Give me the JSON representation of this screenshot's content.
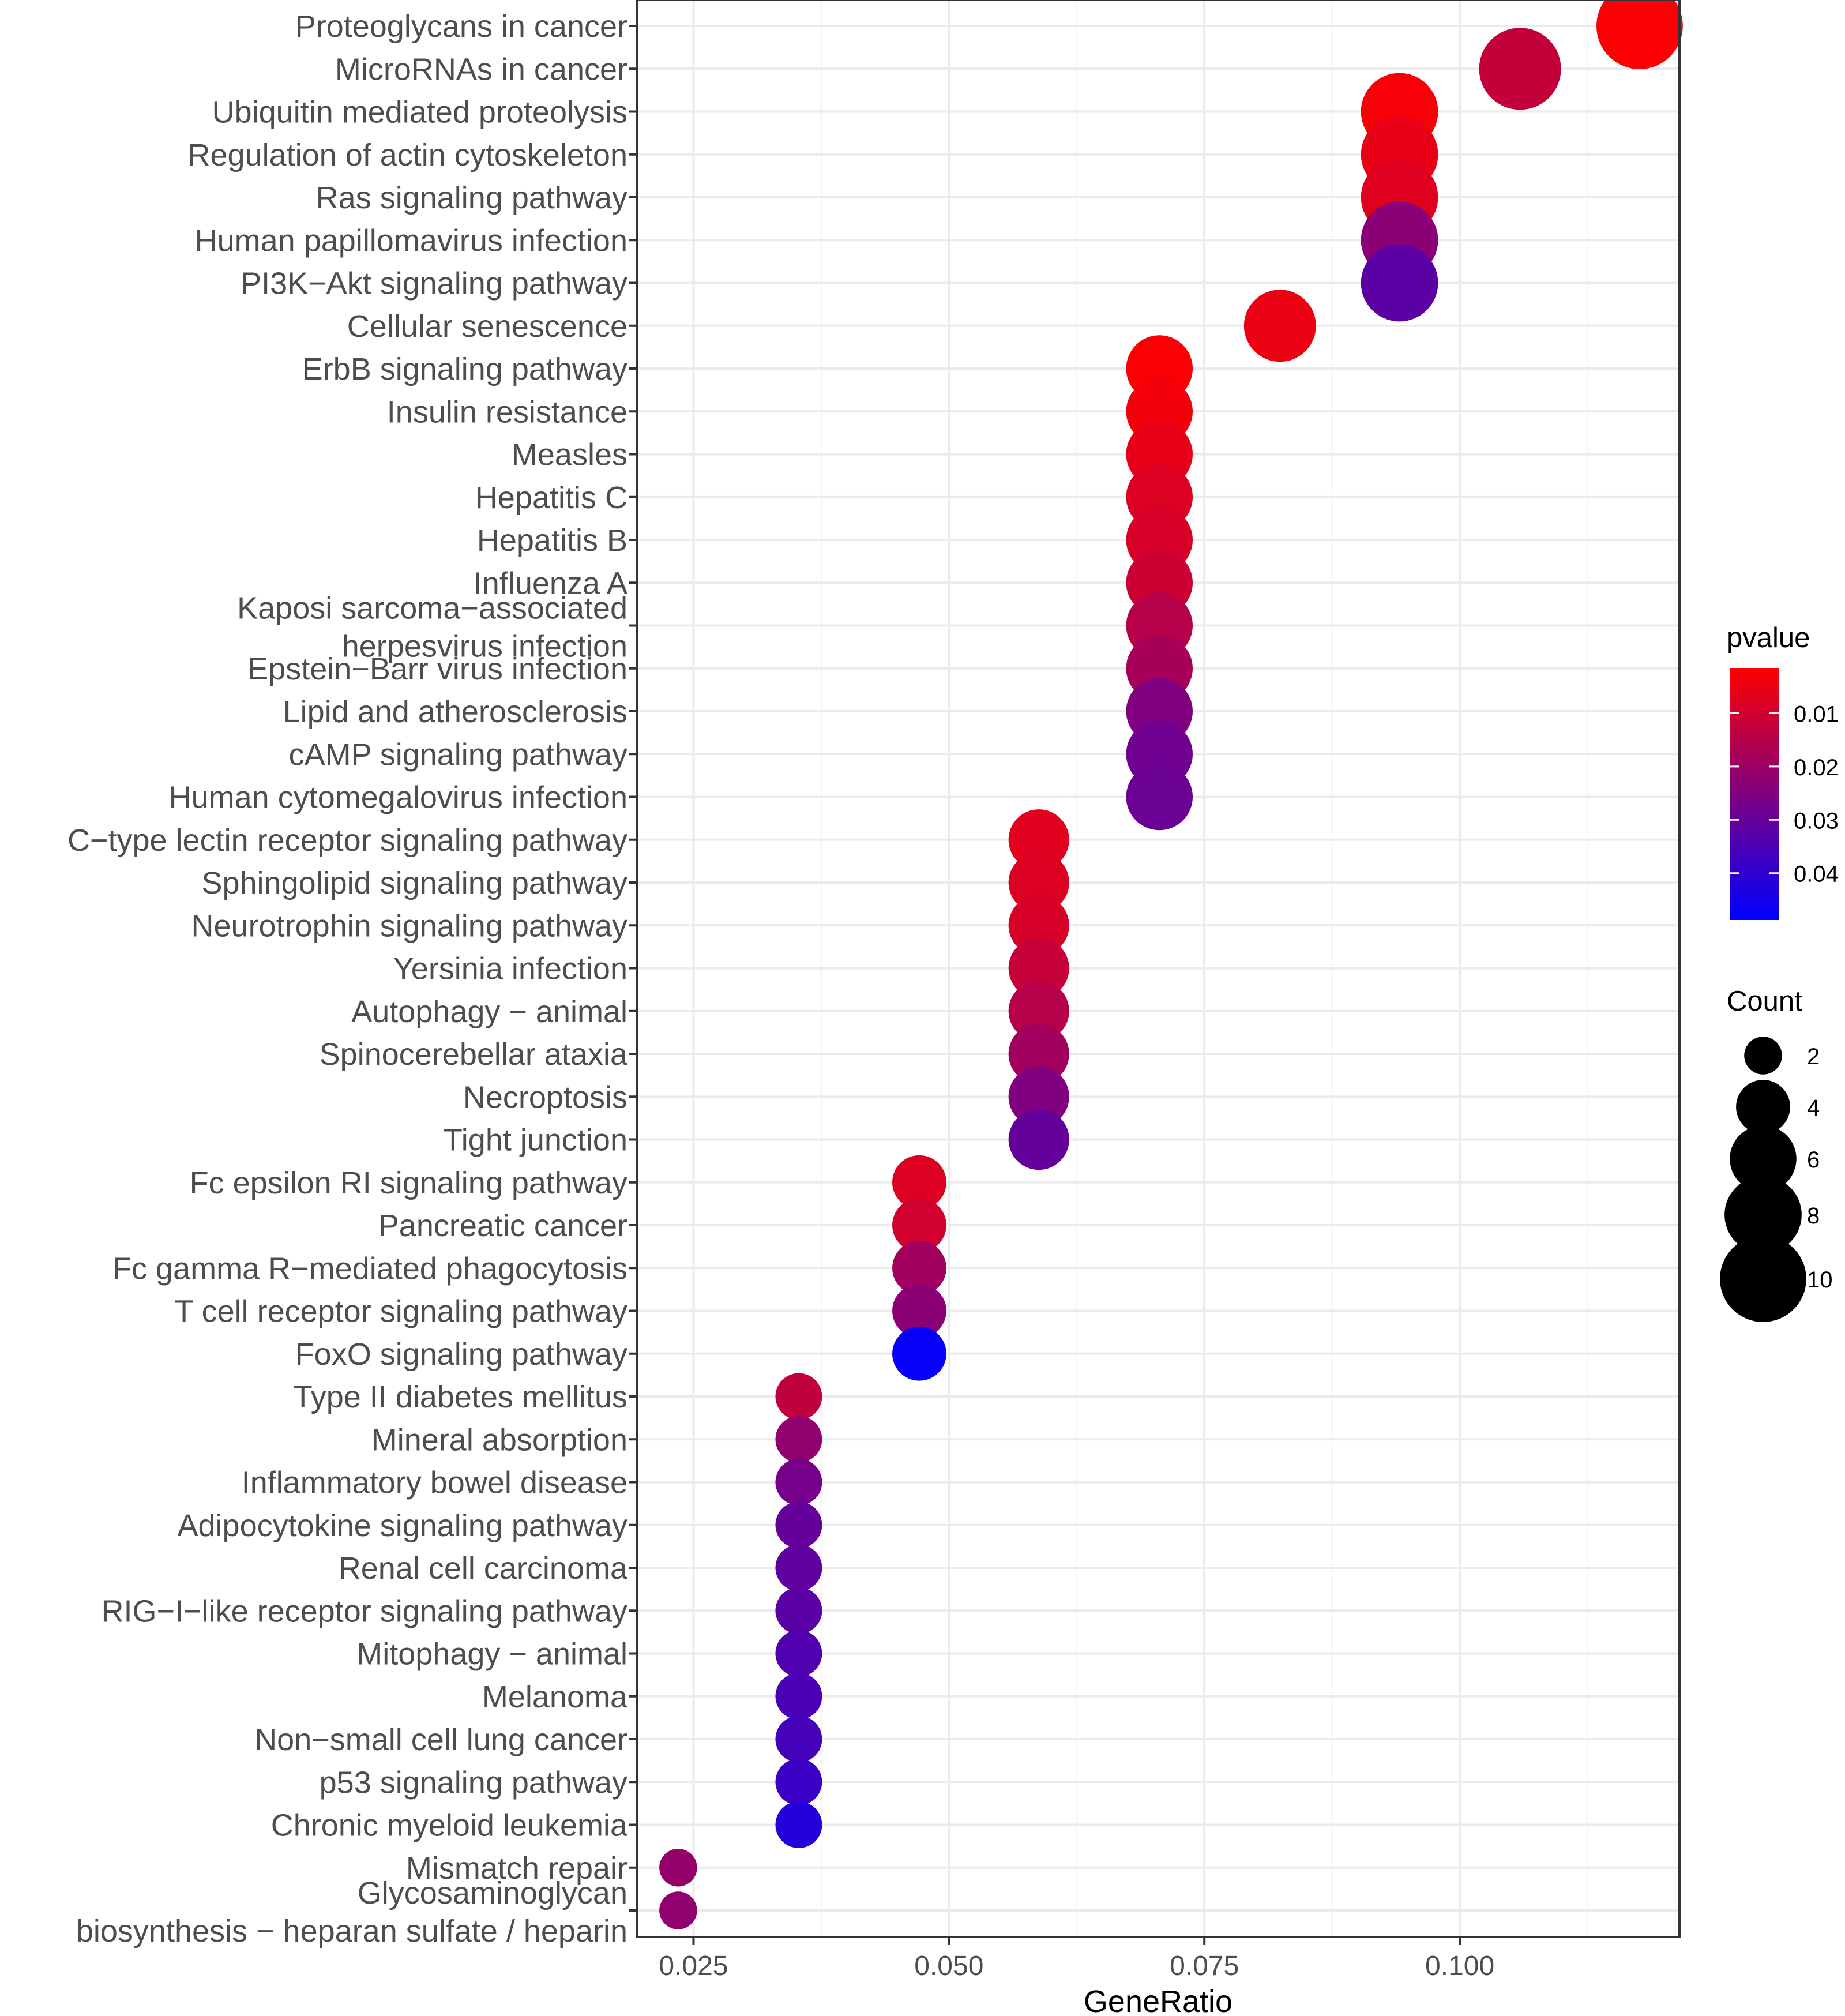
{
  "chart_data": {
    "type": "scatter",
    "title": "",
    "xlabel": "GeneRatio",
    "ylabel": "",
    "xlim": [
      0.0195,
      0.1215
    ],
    "xticks": [
      {
        "value": 0.025,
        "label": "0.025"
      },
      {
        "value": 0.05,
        "label": "0.050"
      },
      {
        "value": 0.075,
        "label": "0.075"
      },
      {
        "value": 0.1,
        "label": "0.100"
      }
    ],
    "points": [
      {
        "term": [
          "Proteoglycans in cancer"
        ],
        "generatio": 0.1176,
        "count": 10,
        "pvalue": 0.002
      },
      {
        "term": [
          "MicroRNAs in cancer"
        ],
        "generatio": 0.1059,
        "count": 9,
        "pvalue": 0.0125
      },
      {
        "term": [
          "Ubiquitin mediated proteolysis"
        ],
        "generatio": 0.0941,
        "count": 8,
        "pvalue": 0.003
      },
      {
        "term": [
          "Regulation of actin cytoskeleton"
        ],
        "generatio": 0.0941,
        "count": 8,
        "pvalue": 0.0055
      },
      {
        "term": [
          "Ras signaling pathway"
        ],
        "generatio": 0.0941,
        "count": 8,
        "pvalue": 0.0075
      },
      {
        "term": [
          "Human papillomavirus infection"
        ],
        "generatio": 0.0941,
        "count": 8,
        "pvalue": 0.023
      },
      {
        "term": [
          "PI3K−Akt signaling pathway"
        ],
        "generatio": 0.0941,
        "count": 8,
        "pvalue": 0.032
      },
      {
        "term": [
          "Cellular senescence"
        ],
        "generatio": 0.0824,
        "count": 7,
        "pvalue": 0.005
      },
      {
        "term": [
          "ErbB signaling pathway"
        ],
        "generatio": 0.0706,
        "count": 6,
        "pvalue": 0.0025
      },
      {
        "term": [
          "Insulin resistance"
        ],
        "generatio": 0.0706,
        "count": 6,
        "pvalue": 0.0035
      },
      {
        "term": [
          "Measles"
        ],
        "generatio": 0.0706,
        "count": 6,
        "pvalue": 0.006
      },
      {
        "term": [
          "Hepatitis C"
        ],
        "generatio": 0.0706,
        "count": 6,
        "pvalue": 0.008
      },
      {
        "term": [
          "Hepatitis B"
        ],
        "generatio": 0.0706,
        "count": 6,
        "pvalue": 0.009
      },
      {
        "term": [
          "Influenza A"
        ],
        "generatio": 0.0706,
        "count": 6,
        "pvalue": 0.011
      },
      {
        "term": [
          "Kaposi sarcoma−associated",
          "herpesvirus infection"
        ],
        "generatio": 0.0706,
        "count": 6,
        "pvalue": 0.015
      },
      {
        "term": [
          "Epstein−Barr virus infection"
        ],
        "generatio": 0.0706,
        "count": 6,
        "pvalue": 0.018
      },
      {
        "term": [
          "Lipid and atherosclerosis"
        ],
        "generatio": 0.0706,
        "count": 6,
        "pvalue": 0.025
      },
      {
        "term": [
          "cAMP signaling pathway"
        ],
        "generatio": 0.0706,
        "count": 6,
        "pvalue": 0.028
      },
      {
        "term": [
          "Human cytomegalovirus infection"
        ],
        "generatio": 0.0706,
        "count": 6,
        "pvalue": 0.029
      },
      {
        "term": [
          "C−type lectin receptor signaling pathway"
        ],
        "generatio": 0.0588,
        "count": 5,
        "pvalue": 0.007
      },
      {
        "term": [
          "Sphingolipid signaling pathway"
        ],
        "generatio": 0.0588,
        "count": 5,
        "pvalue": 0.008
      },
      {
        "term": [
          "Neurotrophin signaling pathway"
        ],
        "generatio": 0.0588,
        "count": 5,
        "pvalue": 0.009
      },
      {
        "term": [
          "Yersinia infection"
        ],
        "generatio": 0.0588,
        "count": 5,
        "pvalue": 0.012
      },
      {
        "term": [
          "Autophagy − animal"
        ],
        "generatio": 0.0588,
        "count": 5,
        "pvalue": 0.015
      },
      {
        "term": [
          "Spinocerebellar ataxia"
        ],
        "generatio": 0.0588,
        "count": 5,
        "pvalue": 0.019
      },
      {
        "term": [
          "Necroptosis"
        ],
        "generatio": 0.0588,
        "count": 5,
        "pvalue": 0.025
      },
      {
        "term": [
          "Tight junction"
        ],
        "generatio": 0.0588,
        "count": 5,
        "pvalue": 0.03
      },
      {
        "term": [
          "Fc epsilon RI signaling pathway"
        ],
        "generatio": 0.0471,
        "count": 4,
        "pvalue": 0.008
      },
      {
        "term": [
          "Pancreatic cancer"
        ],
        "generatio": 0.0471,
        "count": 4,
        "pvalue": 0.01
      },
      {
        "term": [
          "Fc gamma R−mediated phagocytosis"
        ],
        "generatio": 0.0471,
        "count": 4,
        "pvalue": 0.019
      },
      {
        "term": [
          "T cell receptor signaling pathway"
        ],
        "generatio": 0.0471,
        "count": 4,
        "pvalue": 0.023
      },
      {
        "term": [
          "FoxO signaling pathway"
        ],
        "generatio": 0.0471,
        "count": 4,
        "pvalue": 0.0475
      },
      {
        "term": [
          "Type II diabetes mellitus"
        ],
        "generatio": 0.0353,
        "count": 3,
        "pvalue": 0.013
      },
      {
        "term": [
          "Mineral absorption"
        ],
        "generatio": 0.0353,
        "count": 3,
        "pvalue": 0.022
      },
      {
        "term": [
          "Inflammatory bowel disease"
        ],
        "generatio": 0.0353,
        "count": 3,
        "pvalue": 0.027
      },
      {
        "term": [
          "Adipocytokine signaling pathway"
        ],
        "generatio": 0.0353,
        "count": 3,
        "pvalue": 0.03
      },
      {
        "term": [
          "Renal cell carcinoma"
        ],
        "generatio": 0.0353,
        "count": 3,
        "pvalue": 0.031
      },
      {
        "term": [
          "RIG−I−like receptor signaling pathway"
        ],
        "generatio": 0.0353,
        "count": 3,
        "pvalue": 0.032
      },
      {
        "term": [
          "Mitophagy − animal"
        ],
        "generatio": 0.0353,
        "count": 3,
        "pvalue": 0.034
      },
      {
        "term": [
          "Melanoma"
        ],
        "generatio": 0.0353,
        "count": 3,
        "pvalue": 0.035
      },
      {
        "term": [
          "Non−small cell lung cancer"
        ],
        "generatio": 0.0353,
        "count": 3,
        "pvalue": 0.036
      },
      {
        "term": [
          "p53 signaling pathway"
        ],
        "generatio": 0.0353,
        "count": 3,
        "pvalue": 0.038
      },
      {
        "term": [
          "Chronic myeloid leukemia"
        ],
        "generatio": 0.0353,
        "count": 3,
        "pvalue": 0.042
      },
      {
        "term": [
          "Mismatch repair"
        ],
        "generatio": 0.0235,
        "count": 2,
        "pvalue": 0.021
      },
      {
        "term": [
          "Glycosaminoglycan",
          "biosynthesis − heparan sulfate / heparin"
        ],
        "generatio": 0.0235,
        "count": 2,
        "pvalue": 0.022
      }
    ],
    "color_legend": {
      "title": "pvalue",
      "domain": [
        0.0015,
        0.0488
      ],
      "low_color": "#ff0000",
      "high_color": "#0000ff",
      "ticks": [
        {
          "value": 0.01,
          "label": "0.01"
        },
        {
          "value": 0.02,
          "label": "0.02"
        },
        {
          "value": 0.03,
          "label": "0.03"
        },
        {
          "value": 0.04,
          "label": "0.04"
        }
      ]
    },
    "size_legend": {
      "title": "Count",
      "items": [
        {
          "count": 2,
          "label": "2"
        },
        {
          "count": 4,
          "label": "4"
        },
        {
          "count": 6,
          "label": "6"
        },
        {
          "count": 8,
          "label": "8"
        },
        {
          "count": 10,
          "label": "10"
        }
      ]
    },
    "grid": true,
    "legend_position": "right"
  }
}
